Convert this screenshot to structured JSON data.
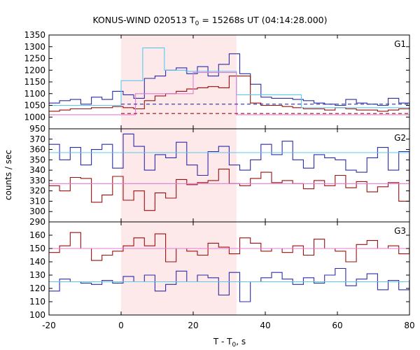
{
  "chart_data": {
    "type": "line",
    "title_main": "KONUS-WIND 020513 T",
    "title_sub": "0",
    "title_rest": " = 15268s UT (04:14:28.000)",
    "xlabel_main": "T - T",
    "xlabel_sub": "0",
    "xlabel_rest": ", s",
    "ylabel": "counts / sec",
    "xlim": [
      -20,
      80
    ],
    "xticks": [
      -20,
      0,
      20,
      40,
      60,
      80
    ],
    "shade": {
      "x0": 0,
      "x1": 32,
      "color": "#fde8ea"
    },
    "colors": {
      "blue": "#2c2ca8",
      "red": "#9b0f0f",
      "cyan": "#5bc8ee",
      "pink": "#e37bd6"
    },
    "panels": [
      {
        "label": "G1",
        "ylim": [
          950,
          1350
        ],
        "yticks": [
          950,
          1000,
          1050,
          1100,
          1150,
          1200,
          1250,
          1300,
          1350
        ],
        "bin_start": -20,
        "bin_width": 2.94,
        "series": [
          {
            "color": "blue",
            "values": [
              1060,
              1070,
              1075,
              1055,
              1085,
              1075,
              1110,
              1095,
              1080,
              1165,
              1175,
              1200,
              1210,
              1185,
              1215,
              1175,
              1225,
              1270,
              1185,
              1140,
              1085,
              1080,
              1080,
              1075,
              1070,
              1060,
              1055,
              1050,
              1075,
              1060,
              1055,
              1050,
              1080,
              1060,
              1050
            ]
          },
          {
            "color": "red",
            "values": [
              1025,
              1030,
              1035,
              1035,
              1040,
              1040,
              1045,
              1040,
              1035,
              1070,
              1090,
              1100,
              1110,
              1120,
              1125,
              1130,
              1125,
              1175,
              1175,
              1060,
              1050,
              1050,
              1045,
              1040,
              1035,
              1035,
              1030,
              1040,
              1035,
              1030,
              1030,
              1025,
              1030,
              1035,
              1040
            ]
          },
          {
            "color": "cyan",
            "step_x": [
              -20,
              0,
              0,
              6,
              6,
              12,
              12,
              18,
              18,
              32,
              32,
              50,
              50,
              80
            ],
            "step_y": [
              1050,
              1050,
              1155,
              1155,
              1295,
              1295,
              1200,
              1200,
              1195,
              1195,
              1095,
              1095,
              1040,
              1040
            ]
          },
          {
            "color": "pink",
            "step_x": [
              -20,
              4,
              4,
              20,
              20,
              32,
              32,
              80
            ],
            "step_y": [
              1010,
              1010,
              1100,
              1100,
              1190,
              1190,
              1010,
              1010
            ]
          },
          {
            "color": "blue",
            "dashed": true,
            "x": [
              0,
              80
            ],
            "y": [
              1055,
              1055
            ]
          },
          {
            "color": "red",
            "dashed": true,
            "x": [
              0,
              80
            ],
            "y": [
              1015,
              1015
            ]
          }
        ]
      },
      {
        "label": "G2",
        "ylim": [
          290,
          380
        ],
        "yticks": [
          290,
          300,
          310,
          320,
          330,
          340,
          350,
          360,
          370
        ],
        "bin_start": -20,
        "bin_width": 2.94,
        "series": [
          {
            "color": "blue",
            "values": [
              365,
              350,
              362,
              345,
              360,
              365,
              342,
              375,
              363,
              340,
              355,
              352,
              367,
              345,
              335,
              358,
              363,
              345,
              340,
              350,
              365,
              355,
              368,
              350,
              342,
              355,
              352,
              350,
              340,
              338,
              352,
              362,
              340,
              358,
              340
            ]
          },
          {
            "color": "red",
            "values": [
              325,
              320,
              333,
              332,
              309,
              316,
              334,
              311,
              320,
              301,
              318,
              313,
              331,
              326,
              328,
              330,
              341,
              327,
              325,
              332,
              338,
              328,
              330,
              327,
              322,
              330,
              325,
              335,
              323,
              329,
              319,
              324,
              328,
              310,
              340
            ]
          },
          {
            "color": "cyan",
            "x": [
              -20,
              80
            ],
            "y": [
              357,
              357
            ]
          },
          {
            "color": "pink",
            "x": [
              -20,
              80
            ],
            "y": [
              327,
              327
            ]
          }
        ]
      },
      {
        "label": "G3",
        "ylim": [
          100,
          170
        ],
        "yticks": [
          100,
          110,
          120,
          130,
          140,
          150,
          160
        ],
        "bin_start": -20,
        "bin_width": 2.94,
        "series": [
          {
            "color": "red",
            "values": [
              147,
              152,
              162,
              150,
              141,
              145,
              148,
              152,
              158,
              152,
              161,
              140,
              150,
              148,
              145,
              154,
              151,
              146,
              158,
              154,
              148,
              150,
              147,
              152,
              145,
              157,
              150,
              148,
              140,
              153,
              156,
              150,
              152,
              146,
              150
            ]
          },
          {
            "color": "blue",
            "values": [
              118,
              127,
              125,
              124,
              123,
              126,
              124,
              129,
              125,
              130,
              118,
              123,
              133,
              125,
              130,
              128,
              115,
              132,
              110,
              125,
              128,
              132,
              127,
              123,
              128,
              124,
              130,
              135,
              122,
              127,
              131,
              119,
              126,
              119,
              126
            ]
          },
          {
            "color": "cyan",
            "x": [
              -20,
              80
            ],
            "y": [
              125,
              125
            ]
          },
          {
            "color": "pink",
            "x": [
              -20,
              80
            ],
            "y": [
              150,
              150
            ]
          }
        ]
      }
    ]
  }
}
